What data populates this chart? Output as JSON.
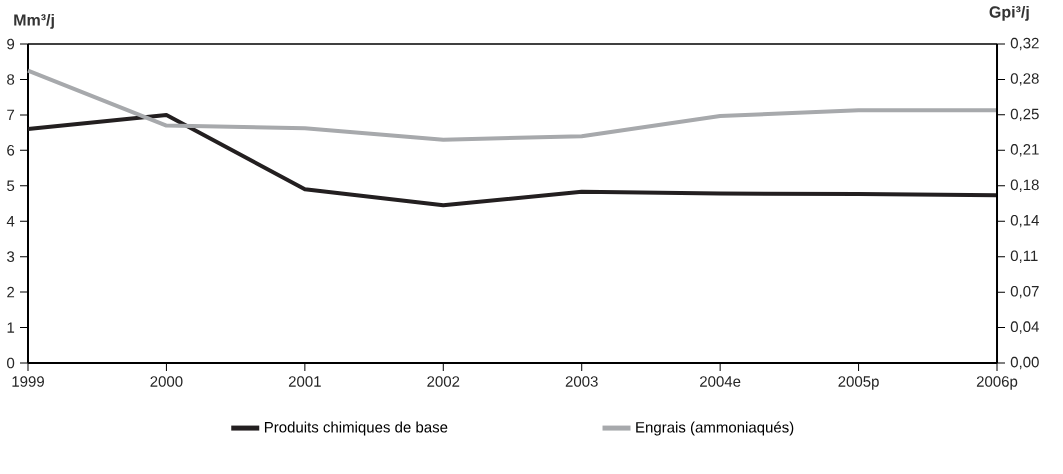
{
  "chart_data": {
    "type": "line",
    "categories": [
      "1999",
      "2000",
      "2001",
      "2002",
      "2003",
      "2004e",
      "2005p",
      "2006p"
    ],
    "series": [
      {
        "name": "Produits chimiques de base",
        "color": "#231f20",
        "values": [
          6.6,
          7.0,
          4.9,
          4.45,
          4.83,
          4.78,
          4.77,
          4.73
        ]
      },
      {
        "name": "Engrais (ammoniaqués)",
        "color": "#a7a9ac",
        "values": [
          8.25,
          6.7,
          6.62,
          6.3,
          6.4,
          6.97,
          7.13,
          7.13
        ]
      }
    ],
    "ylabel": "Mm³/j",
    "y2label": "Gpi³/j",
    "ylim": [
      0,
      9
    ],
    "yticks": [
      0,
      1,
      2,
      3,
      4,
      5,
      6,
      7,
      8,
      9
    ],
    "y2lim": [
      0,
      0.3178
    ],
    "y2ticks": [
      {
        "value": 0,
        "label": "0,00"
      },
      {
        "value": 0.0353,
        "label": "0,04"
      },
      {
        "value": 0.0706,
        "label": "0,07"
      },
      {
        "value": 0.1059,
        "label": "0,11"
      },
      {
        "value": 0.1413,
        "label": "0,14"
      },
      {
        "value": 0.1766,
        "label": "0,18"
      },
      {
        "value": 0.2119,
        "label": "0,21"
      },
      {
        "value": 0.2472,
        "label": "0,25"
      },
      {
        "value": 0.2825,
        "label": "0,28"
      },
      {
        "value": 0.3178,
        "label": "0,32"
      }
    ],
    "grid": false,
    "legend": "bottom",
    "marker": "none",
    "line_style": "solid"
  }
}
